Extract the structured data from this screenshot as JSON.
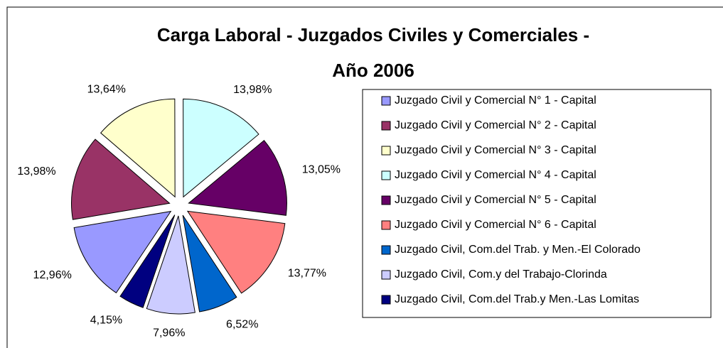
{
  "chart_data": {
    "type": "pie",
    "title": "Carga Laboral - Juzgados Civiles y Comerciales  -",
    "subtitle": "Año 2006",
    "categories": [
      "Juzgado Civil y Comercial N° 1 - Capital",
      "Juzgado Civil y Comercial N° 2 - Capital",
      "Juzgado Civil y Comercial N° 3 - Capital",
      "Juzgado Civil y Comercial N° 4 - Capital",
      "Juzgado Civil y Comercial N° 5 - Capital",
      "Juzgado Civil y Comercial N° 6 - Capital",
      "Juzgado Civil, Com.del Trab. y Men.-El Colorado",
      "Juzgado Civil, Com.y del Trabajo-Clorinda",
      "Juzgado Civil, Com.del Trab.y Men.-Las Lomitas"
    ],
    "values": [
      12.96,
      13.98,
      13.64,
      13.98,
      13.05,
      13.77,
      6.52,
      7.96,
      4.15
    ],
    "value_labels": [
      "12,96%",
      "13,98%",
      "13,64%",
      "13,98%",
      "13,05%",
      "13,77%",
      "6,52%",
      "7,96%",
      "4,15%"
    ],
    "colors": [
      "#9999FF",
      "#993366",
      "#FFFFCC",
      "#CCFFFF",
      "#660066",
      "#FF8080",
      "#0066CC",
      "#CCCCFF",
      "#000080"
    ],
    "legend": "right"
  }
}
